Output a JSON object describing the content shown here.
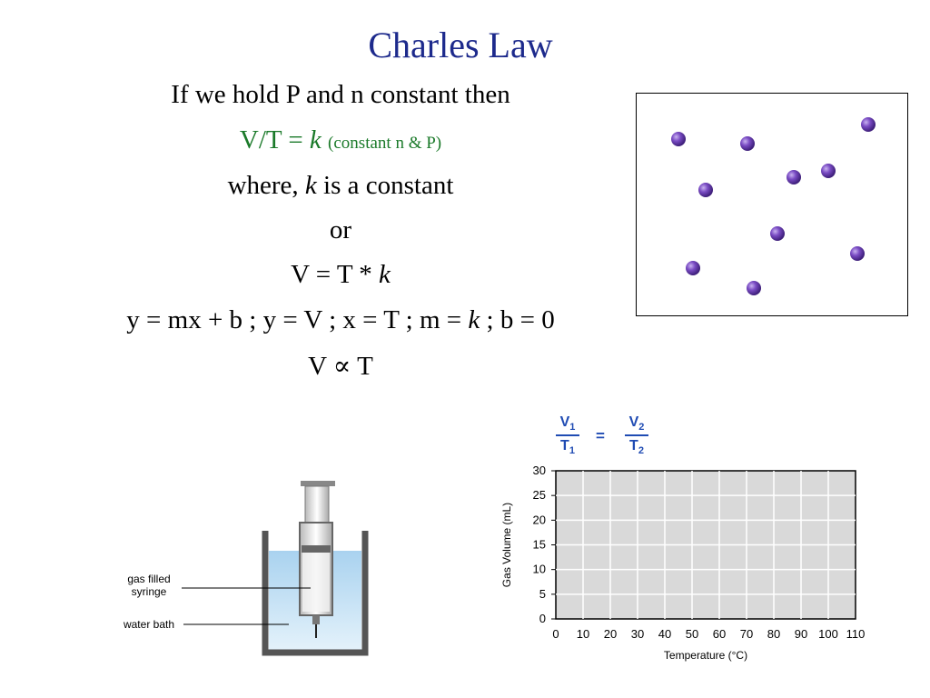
{
  "slide": {
    "title": "Charles Law",
    "line1": "If we hold P and n constant then",
    "line2_main": "V/T = ",
    "line2_k": "k",
    "line2_note": "(constant n & P)",
    "line3_pre": "where, ",
    "line3_k": "k",
    "line3_post": " is a constant",
    "line4": "or",
    "line5_main": "V = T * ",
    "line5_k": "k",
    "line6_pre": "y = mx + b ; y = V ; x = T ; m = ",
    "line6_k": "k",
    "line6_post": " ; b = 0",
    "line7": "V ∝ T"
  },
  "equation": {
    "v": "V",
    "sub1": "1",
    "t": "T",
    "sub2": "2",
    "equals": "="
  },
  "apparatus": {
    "label_gas_line1": "gas filled",
    "label_gas_line2": "syringe",
    "label_water": "water bath"
  },
  "colors": {
    "title": "#1d2a8c",
    "green_text": "#1b7a2a",
    "equation": "#1f4bb3",
    "molecule": "#6a3fb0",
    "water": "#bcdcf2",
    "grid_bg": "#d9d9d9"
  },
  "chart_data": {
    "type": "line",
    "title": "",
    "xlabel": "Temperature (°C)",
    "ylabel": "Gas Volume (mL)",
    "x_ticks": [
      "0",
      "10",
      "20",
      "30",
      "40",
      "50",
      "60",
      "70",
      "80",
      "90",
      "100",
      "110"
    ],
    "y_ticks": [
      "0",
      "5",
      "10",
      "15",
      "20",
      "25",
      "30"
    ],
    "xlim": [
      0,
      110
    ],
    "ylim": [
      0,
      30
    ],
    "grid": true,
    "series": []
  }
}
